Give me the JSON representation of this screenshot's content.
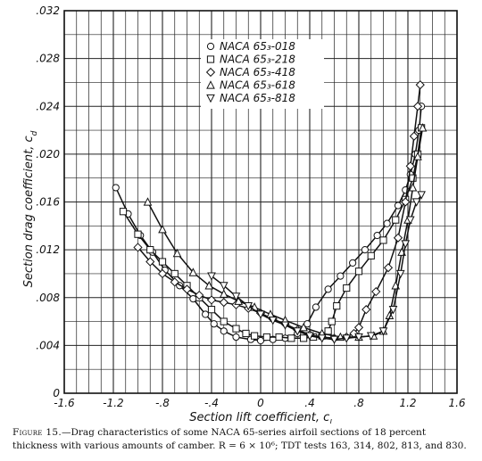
{
  "chart_data": {
    "type": "line",
    "xlabel": "Section lift coefficient, c",
    "xlabel_sub": "l",
    "ylabel": "Section drag coefficient, c",
    "ylabel_sub": "d",
    "xlim": [
      -1.6,
      1.6
    ],
    "ylim": [
      0,
      0.032
    ],
    "x_ticks": [
      -1.6,
      -1.2,
      -0.8,
      -0.4,
      0,
      0.4,
      0.8,
      1.2,
      1.6
    ],
    "x_tick_labels": [
      "-1.6",
      "-1.2",
      "-.8",
      "-.4",
      "0",
      ".4",
      ".8",
      "1.2",
      "1.6"
    ],
    "y_ticks": [
      0,
      0.004,
      0.008,
      0.012,
      0.016,
      0.02,
      0.024,
      0.028,
      0.032
    ],
    "y_tick_labels": [
      "0",
      ".004",
      ".008",
      ".012",
      ".016",
      ".020",
      ".024",
      ".028",
      ".032"
    ],
    "grid": true,
    "legend_position": "top-center",
    "series": [
      {
        "name": "NACA 65₃-018",
        "marker": "circle",
        "points": [
          [
            -1.18,
            0.0172
          ],
          [
            -1.08,
            0.015
          ],
          [
            -0.98,
            0.0132
          ],
          [
            -0.88,
            0.0118
          ],
          [
            -0.78,
            0.0103
          ],
          [
            -0.66,
            0.009
          ],
          [
            -0.55,
            0.0079
          ],
          [
            -0.45,
            0.0066
          ],
          [
            -0.38,
            0.0058
          ],
          [
            -0.3,
            0.0052
          ],
          [
            -0.2,
            0.0047
          ],
          [
            -0.08,
            0.0045
          ],
          [
            0.0,
            0.0044
          ],
          [
            0.1,
            0.0045
          ],
          [
            0.2,
            0.0046
          ],
          [
            0.3,
            0.005
          ],
          [
            0.38,
            0.0058
          ],
          [
            0.45,
            0.0072
          ],
          [
            0.55,
            0.0087
          ],
          [
            0.65,
            0.0098
          ],
          [
            0.75,
            0.0109
          ],
          [
            0.85,
            0.012
          ],
          [
            0.95,
            0.0132
          ],
          [
            1.03,
            0.0142
          ],
          [
            1.12,
            0.0157
          ],
          [
            1.18,
            0.017
          ],
          [
            1.22,
            0.0183
          ],
          [
            1.26,
            0.02
          ],
          [
            1.29,
            0.022
          ],
          [
            1.31,
            0.024
          ]
        ]
      },
      {
        "name": "NACA 65₃-218",
        "marker": "square",
        "points": [
          [
            -1.12,
            0.0152
          ],
          [
            -1.0,
            0.0133
          ],
          [
            -0.9,
            0.012
          ],
          [
            -0.8,
            0.011
          ],
          [
            -0.7,
            0.01
          ],
          [
            -0.6,
            0.009
          ],
          [
            -0.5,
            0.008
          ],
          [
            -0.4,
            0.007
          ],
          [
            -0.3,
            0.006
          ],
          [
            -0.2,
            0.0054
          ],
          [
            -0.12,
            0.005
          ],
          [
            -0.05,
            0.0048
          ],
          [
            0.05,
            0.0047
          ],
          [
            0.15,
            0.0047
          ],
          [
            0.25,
            0.0046
          ],
          [
            0.35,
            0.0046
          ],
          [
            0.43,
            0.0047
          ],
          [
            0.5,
            0.0048
          ],
          [
            0.55,
            0.0052
          ],
          [
            0.58,
            0.006
          ],
          [
            0.62,
            0.0073
          ],
          [
            0.7,
            0.0088
          ],
          [
            0.8,
            0.0102
          ],
          [
            0.9,
            0.0115
          ],
          [
            1.0,
            0.0128
          ],
          [
            1.1,
            0.0145
          ],
          [
            1.18,
            0.0162
          ],
          [
            1.24,
            0.018
          ],
          [
            1.28,
            0.02
          ],
          [
            1.31,
            0.0222
          ]
        ]
      },
      {
        "name": "NACA 65₃-418",
        "marker": "diamond",
        "points": [
          [
            -1.0,
            0.0122
          ],
          [
            -0.9,
            0.011
          ],
          [
            -0.8,
            0.01
          ],
          [
            -0.7,
            0.0093
          ],
          [
            -0.6,
            0.0087
          ],
          [
            -0.5,
            0.0082
          ],
          [
            -0.4,
            0.0078
          ],
          [
            -0.3,
            0.0076
          ],
          [
            -0.2,
            0.0074
          ],
          [
            -0.1,
            0.0071
          ],
          [
            0.0,
            0.0067
          ],
          [
            0.1,
            0.0062
          ],
          [
            0.2,
            0.0058
          ],
          [
            0.3,
            0.0053
          ],
          [
            0.4,
            0.0049
          ],
          [
            0.5,
            0.0047
          ],
          [
            0.6,
            0.0046
          ],
          [
            0.7,
            0.0047
          ],
          [
            0.76,
            0.005
          ],
          [
            0.8,
            0.0055
          ],
          [
            0.86,
            0.007
          ],
          [
            0.94,
            0.0085
          ],
          [
            1.04,
            0.0105
          ],
          [
            1.12,
            0.013
          ],
          [
            1.18,
            0.016
          ],
          [
            1.22,
            0.019
          ],
          [
            1.25,
            0.0215
          ],
          [
            1.28,
            0.024
          ],
          [
            1.3,
            0.0258
          ]
        ]
      },
      {
        "name": "NACA 65₃-618",
        "marker": "triangle-up",
        "points": [
          [
            -0.92,
            0.016
          ],
          [
            -0.8,
            0.0137
          ],
          [
            -0.68,
            0.0117
          ],
          [
            -0.55,
            0.0101
          ],
          [
            -0.42,
            0.009
          ],
          [
            -0.3,
            0.0083
          ],
          [
            -0.18,
            0.0077
          ],
          [
            -0.05,
            0.0072
          ],
          [
            0.08,
            0.0066
          ],
          [
            0.2,
            0.0061
          ],
          [
            0.35,
            0.0055
          ],
          [
            0.5,
            0.005
          ],
          [
            0.65,
            0.0047
          ],
          [
            0.8,
            0.0047
          ],
          [
            0.92,
            0.0048
          ],
          [
            1.0,
            0.0052
          ],
          [
            1.05,
            0.0065
          ],
          [
            1.1,
            0.009
          ],
          [
            1.15,
            0.0118
          ],
          [
            1.2,
            0.0145
          ],
          [
            1.24,
            0.0172
          ],
          [
            1.28,
            0.0198
          ],
          [
            1.32,
            0.0222
          ]
        ]
      },
      {
        "name": "NACA 65₃-818",
        "marker": "triangle-down",
        "points": [
          [
            -0.4,
            0.0098
          ],
          [
            -0.3,
            0.009
          ],
          [
            -0.2,
            0.0081
          ],
          [
            -0.1,
            0.0073
          ],
          [
            0.0,
            0.0066
          ],
          [
            0.1,
            0.0061
          ],
          [
            0.2,
            0.0057
          ],
          [
            0.3,
            0.0052
          ],
          [
            0.4,
            0.0048
          ],
          [
            0.5,
            0.0046
          ],
          [
            0.6,
            0.0045
          ],
          [
            0.7,
            0.0046
          ],
          [
            0.8,
            0.0047
          ],
          [
            0.9,
            0.0048
          ],
          [
            1.0,
            0.0052
          ],
          [
            1.08,
            0.007
          ],
          [
            1.14,
            0.01
          ],
          [
            1.18,
            0.0125
          ],
          [
            1.22,
            0.0145
          ],
          [
            1.27,
            0.016
          ],
          [
            1.31,
            0.0166
          ]
        ]
      }
    ]
  },
  "caption": {
    "lead": "Figure 15.",
    "text": "—Drag characteristics of some NACA 65-series airfoil sections of 18 percent thickness with various amounts of camber.  R = 6 × 10⁶; TDT tests 163, 314, 802, 813, and 830."
  }
}
